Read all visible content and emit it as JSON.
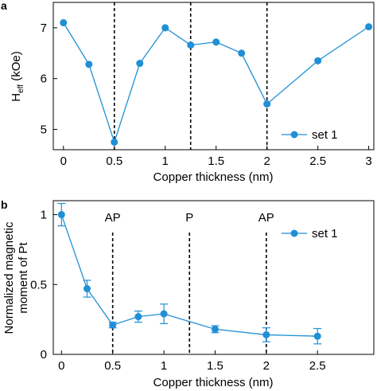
{
  "chart_data": [
    {
      "type": "line",
      "panel_label": "a",
      "xlabel": "Copper thickness (nm)",
      "ylabel_main": "H",
      "ylabel_sub": "eff",
      "ylabel_unit": " (kOe)",
      "xlim": [
        -0.1,
        3.05
      ],
      "ylim": [
        4.6,
        7.5
      ],
      "xticks": [
        0,
        0.5,
        1,
        1.5,
        2,
        2.5,
        3
      ],
      "xtick_labels": [
        "0",
        "0.5",
        "1",
        "1.5",
        "2",
        "2.5",
        "3"
      ],
      "yticks": [
        5,
        6,
        7
      ],
      "ytick_labels": [
        "5",
        "6",
        "7"
      ],
      "vlines": [
        0.5,
        1.25,
        2
      ],
      "legend": {
        "placement": "bottom-right"
      },
      "color": "#1f8fd6",
      "series": [
        {
          "name": "set 1",
          "x": [
            0,
            0.25,
            0.5,
            0.75,
            1,
            1.25,
            1.5,
            1.75,
            2,
            2.5,
            3
          ],
          "y": [
            7.1,
            6.28,
            4.75,
            6.3,
            7.0,
            6.66,
            6.72,
            6.5,
            5.5,
            6.35,
            7.02
          ]
        }
      ]
    },
    {
      "type": "line",
      "panel_label": "b",
      "xlabel": "Copper thickness (nm)",
      "ylabel_line1": "Normalized magnetic",
      "ylabel_line2": "moment of Pt",
      "xlim": [
        -0.08,
        3.05
      ],
      "ylim": [
        0,
        1.1
      ],
      "xticks": [
        0,
        0.5,
        1,
        1.5,
        2,
        2.5
      ],
      "xtick_labels": [
        "0",
        "0.5",
        "1",
        "1.5",
        "2",
        "2.5"
      ],
      "yticks": [
        0,
        0.5,
        1
      ],
      "ytick_labels": [
        "0",
        "0.5",
        "1"
      ],
      "vlines": [
        0.5,
        1.25,
        2
      ],
      "annotations": [
        {
          "x": 0.5,
          "text": "AP"
        },
        {
          "x": 1.25,
          "text": "P"
        },
        {
          "x": 2,
          "text": "AP"
        }
      ],
      "legend": {
        "placement": "top-right"
      },
      "color": "#1f8fd6",
      "series": [
        {
          "name": "set 1",
          "x": [
            0,
            0.25,
            0.5,
            0.75,
            1,
            1.5,
            2,
            2.5
          ],
          "y": [
            1.0,
            0.47,
            0.21,
            0.27,
            0.29,
            0.18,
            0.14,
            0.13
          ],
          "err": [
            0.08,
            0.06,
            0.02,
            0.04,
            0.07,
            0.025,
            0.05,
            0.055
          ]
        }
      ]
    }
  ]
}
